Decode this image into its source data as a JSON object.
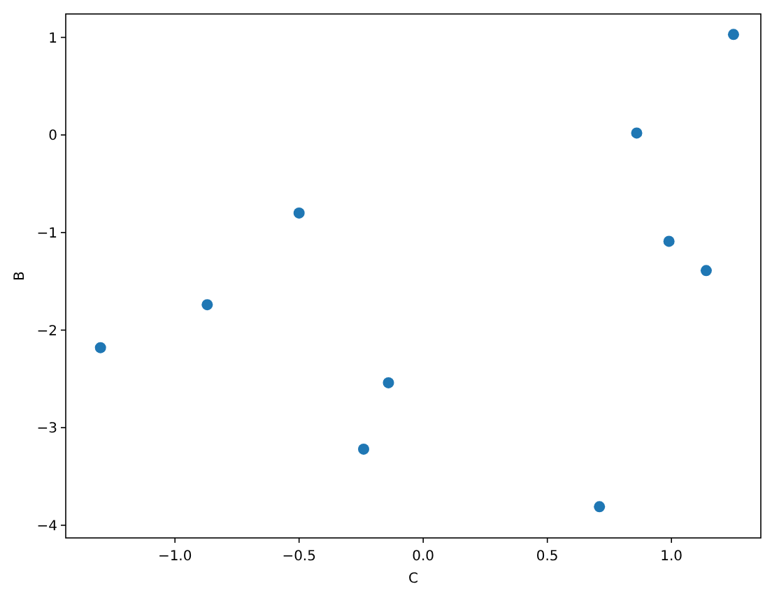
{
  "chart_data": {
    "type": "scatter",
    "xlabel": "C",
    "ylabel": "B",
    "marker": "circle",
    "grid": false,
    "x": [
      -1.3,
      -0.87,
      -0.5,
      -0.14,
      -0.24,
      0.71,
      0.86,
      0.99,
      1.14,
      1.25
    ],
    "series": [
      {
        "color": "#1f77b4",
        "values": [
          -2.18,
          -1.74,
          -0.8,
          -2.54,
          -3.22,
          -3.81,
          0.02,
          -1.09,
          -1.39,
          1.03
        ]
      }
    ],
    "xlim": [
      -1.44,
      1.36
    ],
    "xticks": [
      {
        "value": -1,
        "label": "−1.0"
      },
      -0.5,
      {
        "value": 0,
        "label": "0.0"
      },
      0.5,
      {
        "value": 1,
        "label": "1.0"
      }
    ],
    "ylim": [
      -4.13,
      1.24
    ],
    "yticks": [
      -4,
      -3,
      -2,
      -1,
      0,
      1
    ]
  }
}
